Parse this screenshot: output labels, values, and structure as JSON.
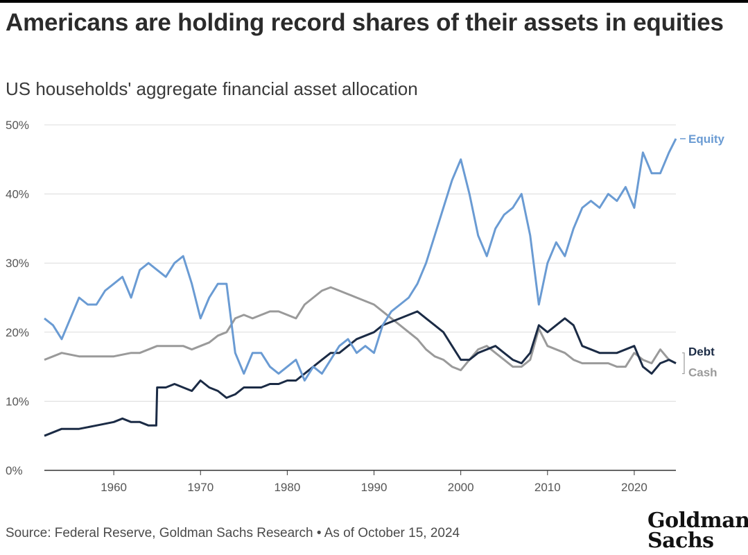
{
  "title": "Americans are holding record shares of their assets in equities",
  "subtitle": "US households' aggregate financial asset allocation",
  "source": "Source: Federal Reserve, Goldman Sachs Research • As of October 15, 2024",
  "logo": {
    "line1": "Goldman",
    "line2": "Sachs"
  },
  "chart_data": {
    "type": "line",
    "xlim": [
      1952,
      2024.8
    ],
    "ylim": [
      0,
      50
    ],
    "y_ticks": [
      0,
      10,
      20,
      30,
      40,
      50
    ],
    "y_tick_labels": [
      "0%",
      "10%",
      "20%",
      "30%",
      "40%",
      "50%"
    ],
    "x_ticks": [
      1960,
      1970,
      1980,
      1990,
      2000,
      2010,
      2020
    ],
    "x_tick_labels": [
      "1960",
      "1970",
      "1980",
      "1990",
      "2000",
      "2010",
      "2020"
    ],
    "grid": true,
    "series": [
      {
        "name": "Equity",
        "color": "#6a9bd3",
        "points": [
          [
            1952,
            22
          ],
          [
            1953,
            21
          ],
          [
            1954,
            19
          ],
          [
            1955,
            22
          ],
          [
            1956,
            25
          ],
          [
            1957,
            24
          ],
          [
            1958,
            24
          ],
          [
            1959,
            26
          ],
          [
            1960,
            27
          ],
          [
            1961,
            28
          ],
          [
            1962,
            25
          ],
          [
            1963,
            29
          ],
          [
            1964,
            30
          ],
          [
            1965,
            29
          ],
          [
            1966,
            28
          ],
          [
            1967,
            30
          ],
          [
            1968,
            31
          ],
          [
            1969,
            27
          ],
          [
            1970,
            22
          ],
          [
            1971,
            25
          ],
          [
            1972,
            27
          ],
          [
            1973,
            27
          ],
          [
            1974,
            17
          ],
          [
            1975,
            14
          ],
          [
            1976,
            17
          ],
          [
            1977,
            17
          ],
          [
            1978,
            15
          ],
          [
            1979,
            14
          ],
          [
            1980,
            15
          ],
          [
            1981,
            16
          ],
          [
            1982,
            13
          ],
          [
            1983,
            15
          ],
          [
            1984,
            14
          ],
          [
            1985,
            16
          ],
          [
            1986,
            18
          ],
          [
            1987,
            19
          ],
          [
            1988,
            17
          ],
          [
            1989,
            18
          ],
          [
            1990,
            17
          ],
          [
            1991,
            21
          ],
          [
            1992,
            23
          ],
          [
            1993,
            24
          ],
          [
            1994,
            25
          ],
          [
            1995,
            27
          ],
          [
            1996,
            30
          ],
          [
            1997,
            34
          ],
          [
            1998,
            38
          ],
          [
            1999,
            42
          ],
          [
            2000,
            45
          ],
          [
            2001,
            40
          ],
          [
            2002,
            34
          ],
          [
            2003,
            31
          ],
          [
            2004,
            35
          ],
          [
            2005,
            37
          ],
          [
            2006,
            38
          ],
          [
            2007,
            40
          ],
          [
            2008,
            34
          ],
          [
            2009,
            24
          ],
          [
            2010,
            30
          ],
          [
            2011,
            33
          ],
          [
            2012,
            31
          ],
          [
            2013,
            35
          ],
          [
            2014,
            38
          ],
          [
            2015,
            39
          ],
          [
            2016,
            38
          ],
          [
            2017,
            40
          ],
          [
            2018,
            39
          ],
          [
            2019,
            41
          ],
          [
            2020,
            38
          ],
          [
            2021,
            46
          ],
          [
            2022,
            43
          ],
          [
            2023,
            43
          ],
          [
            2024,
            46
          ],
          [
            2024.8,
            48
          ]
        ]
      },
      {
        "name": "Debt",
        "color": "#1b2b45",
        "points": [
          [
            1952,
            5
          ],
          [
            1953,
            5.5
          ],
          [
            1954,
            6
          ],
          [
            1956,
            6
          ],
          [
            1958,
            6.5
          ],
          [
            1960,
            7
          ],
          [
            1961,
            7.5
          ],
          [
            1962,
            7
          ],
          [
            1963,
            7
          ],
          [
            1964,
            6.5
          ],
          [
            1964.9,
            6.5
          ],
          [
            1965,
            12
          ],
          [
            1966,
            12
          ],
          [
            1967,
            12.5
          ],
          [
            1968,
            12
          ],
          [
            1969,
            11.5
          ],
          [
            1970,
            13
          ],
          [
            1971,
            12
          ],
          [
            1972,
            11.5
          ],
          [
            1973,
            10.5
          ],
          [
            1974,
            11
          ],
          [
            1975,
            12
          ],
          [
            1976,
            12
          ],
          [
            1977,
            12
          ],
          [
            1978,
            12.5
          ],
          [
            1979,
            12.5
          ],
          [
            1980,
            13
          ],
          [
            1981,
            13
          ],
          [
            1982,
            14
          ],
          [
            1983,
            15
          ],
          [
            1984,
            16
          ],
          [
            1985,
            17
          ],
          [
            1986,
            17
          ],
          [
            1987,
            18
          ],
          [
            1988,
            19
          ],
          [
            1989,
            19.5
          ],
          [
            1990,
            20
          ],
          [
            1991,
            21
          ],
          [
            1992,
            21.5
          ],
          [
            1993,
            22
          ],
          [
            1994,
            22.5
          ],
          [
            1995,
            23
          ],
          [
            1996,
            22
          ],
          [
            1997,
            21
          ],
          [
            1998,
            20
          ],
          [
            1999,
            18
          ],
          [
            2000,
            16
          ],
          [
            2001,
            16
          ],
          [
            2002,
            17
          ],
          [
            2003,
            17.5
          ],
          [
            2004,
            18
          ],
          [
            2005,
            17
          ],
          [
            2006,
            16
          ],
          [
            2007,
            15.5
          ],
          [
            2008,
            17
          ],
          [
            2009,
            21
          ],
          [
            2010,
            20
          ],
          [
            2011,
            21
          ],
          [
            2012,
            22
          ],
          [
            2013,
            21
          ],
          [
            2014,
            18
          ],
          [
            2015,
            17.5
          ],
          [
            2016,
            17
          ],
          [
            2017,
            17
          ],
          [
            2018,
            17
          ],
          [
            2019,
            17.5
          ],
          [
            2020,
            18
          ],
          [
            2021,
            15
          ],
          [
            2022,
            14
          ],
          [
            2023,
            15.5
          ],
          [
            2024,
            16
          ],
          [
            2024.8,
            15.5
          ]
        ]
      },
      {
        "name": "Cash",
        "color": "#9a9a9a",
        "points": [
          [
            1952,
            16
          ],
          [
            1953,
            16.5
          ],
          [
            1954,
            17
          ],
          [
            1956,
            16.5
          ],
          [
            1958,
            16.5
          ],
          [
            1960,
            16.5
          ],
          [
            1962,
            17
          ],
          [
            1963,
            17
          ],
          [
            1964,
            17.5
          ],
          [
            1965,
            18
          ],
          [
            1966,
            18
          ],
          [
            1967,
            18
          ],
          [
            1968,
            18
          ],
          [
            1969,
            17.5
          ],
          [
            1970,
            18
          ],
          [
            1971,
            18.5
          ],
          [
            1972,
            19.5
          ],
          [
            1973,
            20
          ],
          [
            1974,
            22
          ],
          [
            1975,
            22.5
          ],
          [
            1976,
            22
          ],
          [
            1977,
            22.5
          ],
          [
            1978,
            23
          ],
          [
            1979,
            23
          ],
          [
            1980,
            22.5
          ],
          [
            1981,
            22
          ],
          [
            1982,
            24
          ],
          [
            1983,
            25
          ],
          [
            1984,
            26
          ],
          [
            1985,
            26.5
          ],
          [
            1986,
            26
          ],
          [
            1987,
            25.5
          ],
          [
            1988,
            25
          ],
          [
            1989,
            24.5
          ],
          [
            1990,
            24
          ],
          [
            1991,
            23
          ],
          [
            1992,
            22
          ],
          [
            1993,
            21
          ],
          [
            1994,
            20
          ],
          [
            1995,
            19
          ],
          [
            1996,
            17.5
          ],
          [
            1997,
            16.5
          ],
          [
            1998,
            16
          ],
          [
            1999,
            15
          ],
          [
            2000,
            14.5
          ],
          [
            2001,
            16
          ],
          [
            2002,
            17.5
          ],
          [
            2003,
            18
          ],
          [
            2004,
            17
          ],
          [
            2005,
            16
          ],
          [
            2006,
            15
          ],
          [
            2007,
            15
          ],
          [
            2008,
            16
          ],
          [
            2009,
            20.5
          ],
          [
            2010,
            18
          ],
          [
            2011,
            17.5
          ],
          [
            2012,
            17
          ],
          [
            2013,
            16
          ],
          [
            2014,
            15.5
          ],
          [
            2015,
            15.5
          ],
          [
            2016,
            15.5
          ],
          [
            2017,
            15.5
          ],
          [
            2018,
            15
          ],
          [
            2019,
            15
          ],
          [
            2020,
            17
          ],
          [
            2021,
            16
          ],
          [
            2022,
            15.5
          ],
          [
            2023,
            17.5
          ],
          [
            2024,
            16
          ],
          [
            2024.8,
            15.5
          ]
        ]
      }
    ],
    "series_labels": [
      "Equity",
      "Debt",
      "Cash"
    ]
  }
}
